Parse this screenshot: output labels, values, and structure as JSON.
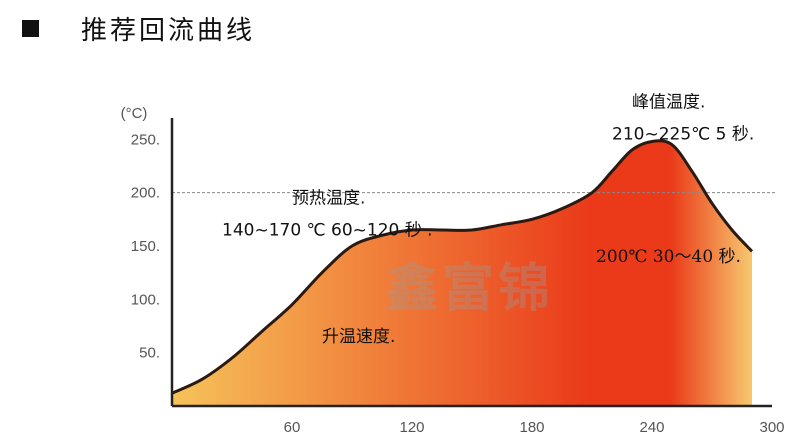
{
  "heading": {
    "title": "推荐回流曲线"
  },
  "colors": {
    "gradient_start": "#F6C35A",
    "gradient_mid": "#EA3A1A",
    "gradient_end": "#F7C86E",
    "curve": "#2b1a12",
    "axis": "#222222",
    "reference_line": "#888888"
  },
  "chart_data": {
    "type": "area",
    "ylabel": "(°C)",
    "xlim": [
      0,
      300
    ],
    "ylim": [
      0,
      270
    ],
    "x_ticks": [
      "60",
      "120",
      "180",
      "240",
      "300"
    ],
    "y_ticks": [
      "50.",
      "100.",
      "150.",
      "200.",
      "250."
    ],
    "x": [
      0,
      15,
      30,
      45,
      60,
      75,
      90,
      105,
      120,
      135,
      150,
      165,
      180,
      195,
      210,
      220,
      230,
      240,
      250,
      260,
      270,
      280,
      290
    ],
    "y": [
      12,
      25,
      45,
      70,
      95,
      125,
      150,
      160,
      165,
      165,
      165,
      170,
      175,
      185,
      200,
      220,
      240,
      248,
      245,
      220,
      190,
      165,
      145
    ],
    "reference_line": {
      "y": 200
    },
    "annotations": [
      {
        "id": "preheat-title",
        "text": "预热温度.",
        "x": 60,
        "y": 190
      },
      {
        "id": "preheat-detail",
        "text": "140~170 ℃ 60~120 秒 .",
        "x": 25,
        "y": 160
      },
      {
        "id": "ramp",
        "text": "升温速度.",
        "x": 75,
        "y": 60
      },
      {
        "id": "peak-title",
        "text": "峰值温度.",
        "x": 230,
        "y": 280
      },
      {
        "id": "peak-detail",
        "text": "210~225℃  5 秒.",
        "x": 220,
        "y": 250
      },
      {
        "id": "above-200",
        "text": "200℃  30～40 秒.",
        "x": 212,
        "y": 135
      }
    ]
  },
  "watermark": {
    "text": "鑫富锦"
  }
}
